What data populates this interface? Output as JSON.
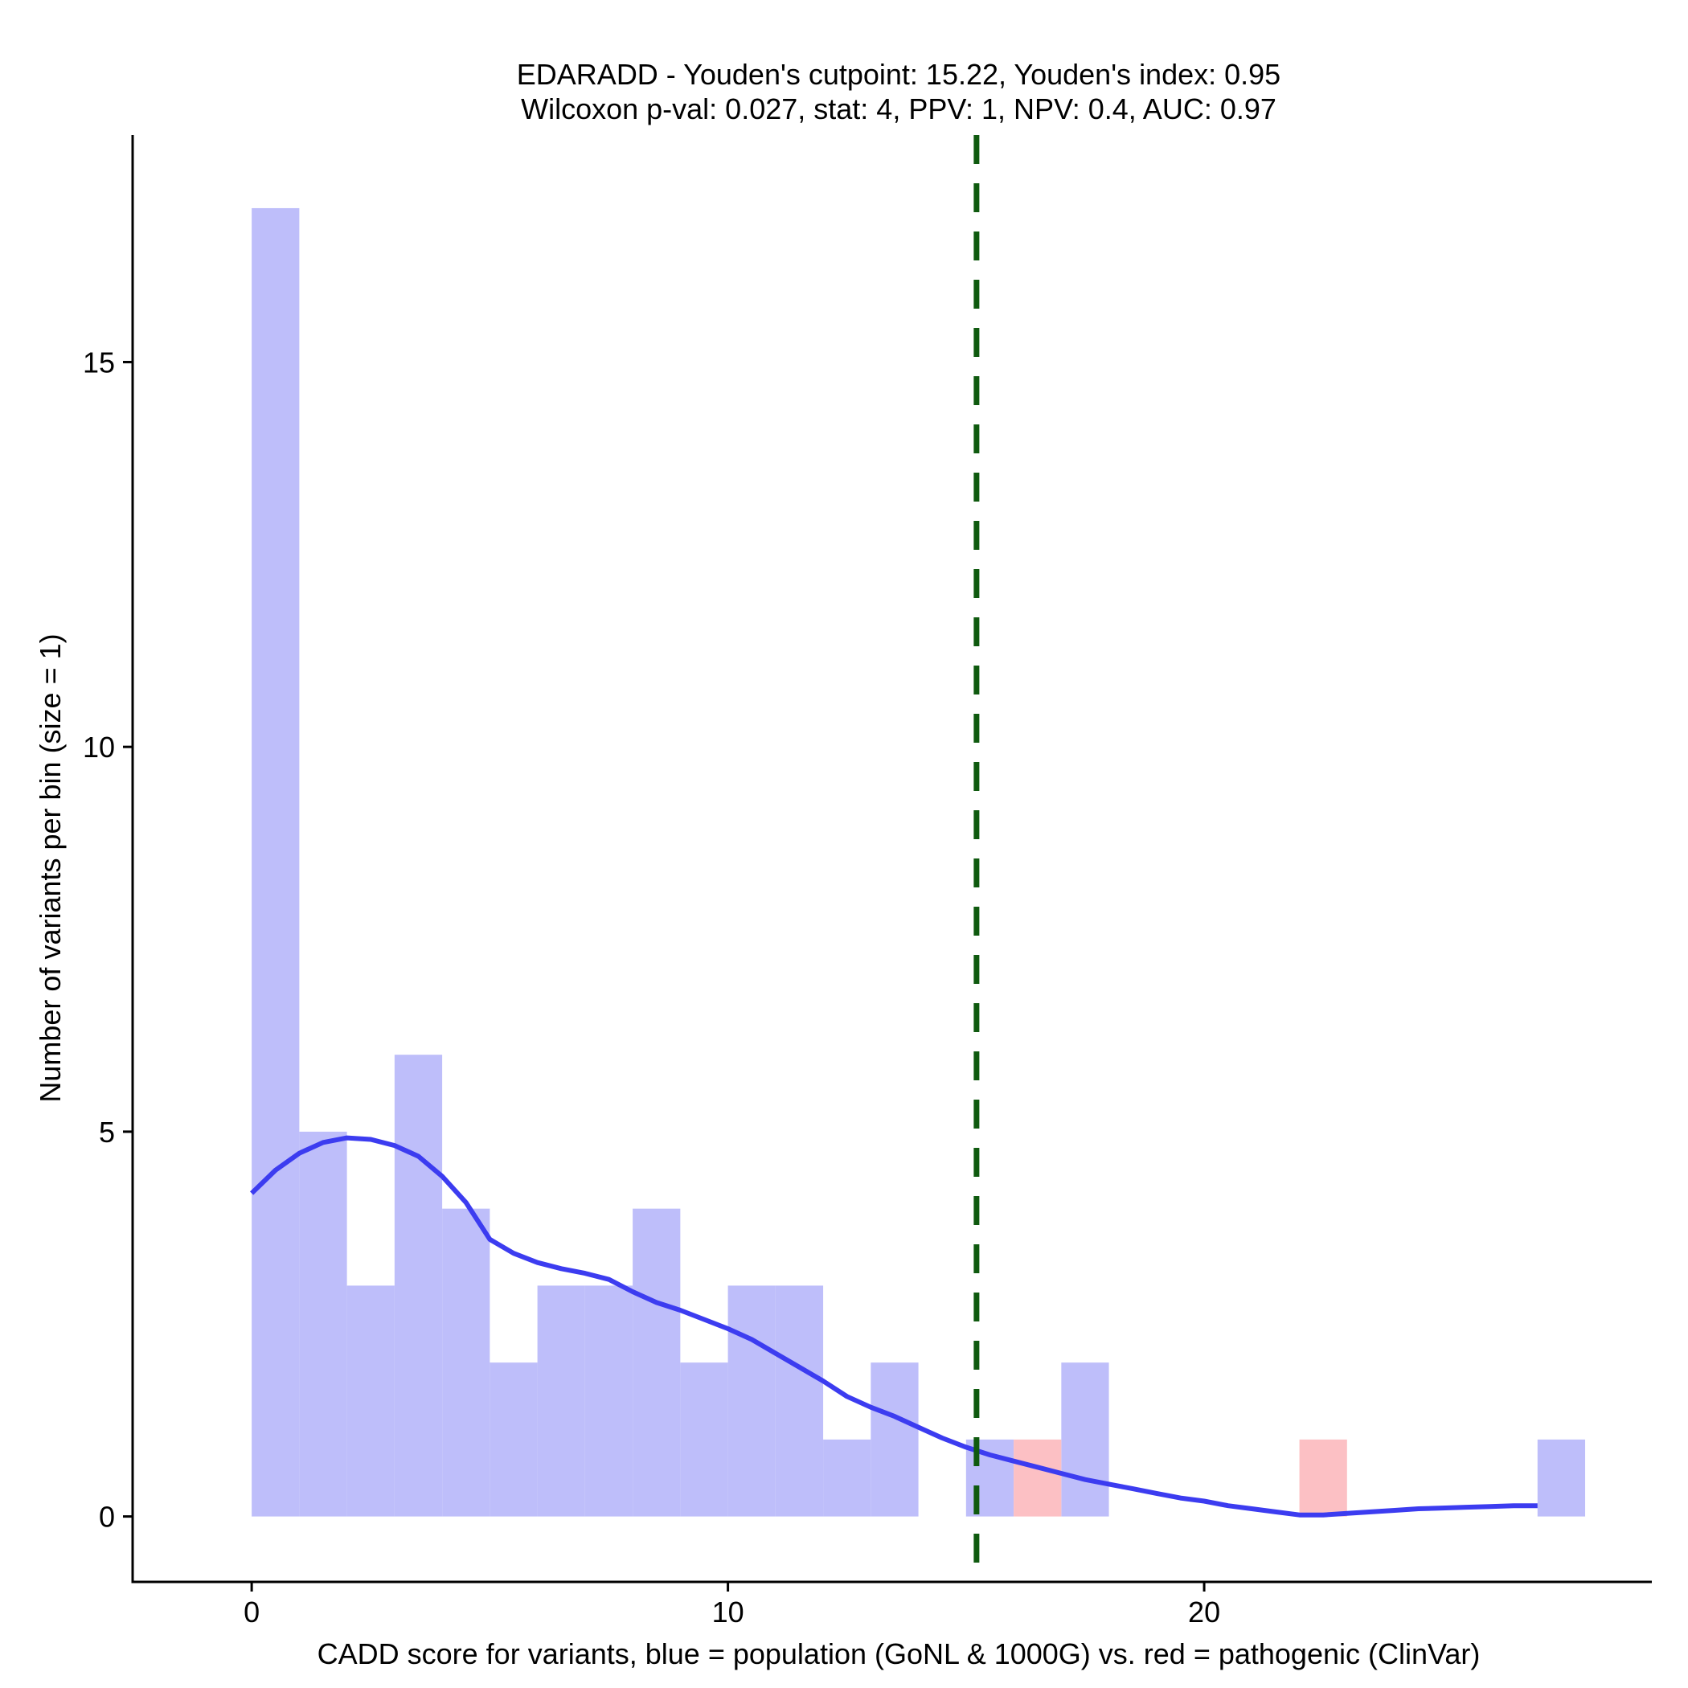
{
  "chart_data": {
    "type": "bar",
    "title_line1": "EDARADD - Youden's cutpoint: 15.22, Youden's index: 0.95",
    "title_line2": "Wilcoxon p-val: 0.027, stat: 4, PPV: 1, NPV: 0.4, AUC: 0.97",
    "xlabel": "CADD score for variants, blue = population (GoNL & 1000G) vs. red = pathogenic (ClinVar)",
    "ylabel": "Number of variants per bin (size = 1)",
    "xlim": [
      -2.5,
      29.4
    ],
    "ylim": [
      -0.85,
      17.95
    ],
    "xticks": [
      0,
      10,
      20
    ],
    "xtick_labels": [
      "0",
      "10",
      "20"
    ],
    "yticks": [
      0,
      5,
      10,
      15
    ],
    "ytick_labels": [
      "0",
      "5",
      "10",
      "15"
    ],
    "bin_width": 1,
    "series": [
      {
        "name": "population (GoNL & 1000G)",
        "color": "#bebefa",
        "bins": [
          {
            "x0": 0,
            "count": 17
          },
          {
            "x0": 1,
            "count": 5
          },
          {
            "x0": 2,
            "count": 3
          },
          {
            "x0": 3,
            "count": 6
          },
          {
            "x0": 4,
            "count": 4
          },
          {
            "x0": 5,
            "count": 2
          },
          {
            "x0": 6,
            "count": 3
          },
          {
            "x0": 7,
            "count": 3
          },
          {
            "x0": 8,
            "count": 4
          },
          {
            "x0": 9,
            "count": 2
          },
          {
            "x0": 10,
            "count": 3
          },
          {
            "x0": 11,
            "count": 3
          },
          {
            "x0": 12,
            "count": 1
          },
          {
            "x0": 13,
            "count": 2
          },
          {
            "x0": 15,
            "count": 1
          },
          {
            "x0": 17,
            "count": 2
          },
          {
            "x0": 27,
            "count": 1
          }
        ]
      },
      {
        "name": "pathogenic (ClinVar)",
        "color": "#fcc0c4",
        "bins": [
          {
            "x0": 16,
            "count": 1
          },
          {
            "x0": 22,
            "count": 1
          }
        ]
      }
    ],
    "density_curve": {
      "color": "#3c3cf0",
      "x": [
        0,
        0.5,
        1,
        1.5,
        2,
        2.5,
        3,
        3.5,
        4,
        4.5,
        5,
        5.5,
        6,
        6.5,
        7,
        7.5,
        8,
        8.5,
        9,
        9.5,
        10,
        10.5,
        11,
        11.5,
        12,
        12.5,
        13,
        13.5,
        14,
        14.5,
        15,
        15.5,
        16,
        16.5,
        17,
        17.5,
        18,
        18.5,
        19,
        19.5,
        20,
        20.5,
        21,
        21.5,
        22,
        22.5,
        23,
        23.5,
        24,
        24.5,
        25,
        25.5,
        26,
        26.5,
        27
      ],
      "y": [
        4.2,
        4.5,
        4.72,
        4.86,
        4.92,
        4.9,
        4.82,
        4.68,
        4.42,
        4.08,
        3.6,
        3.42,
        3.3,
        3.22,
        3.16,
        3.08,
        2.92,
        2.78,
        2.68,
        2.56,
        2.44,
        2.3,
        2.12,
        1.94,
        1.76,
        1.56,
        1.42,
        1.3,
        1.16,
        1.02,
        0.9,
        0.8,
        0.72,
        0.64,
        0.56,
        0.48,
        0.42,
        0.36,
        0.3,
        0.24,
        0.2,
        0.14,
        0.1,
        0.06,
        0.02,
        0.02,
        0.04,
        0.06,
        0.08,
        0.1,
        0.11,
        0.12,
        0.13,
        0.14,
        0.14
      ]
    },
    "cutpoint": {
      "x": 15.22,
      "color": "#0f5a0f",
      "style": "dashed"
    },
    "legend": "none",
    "grid": false
  }
}
